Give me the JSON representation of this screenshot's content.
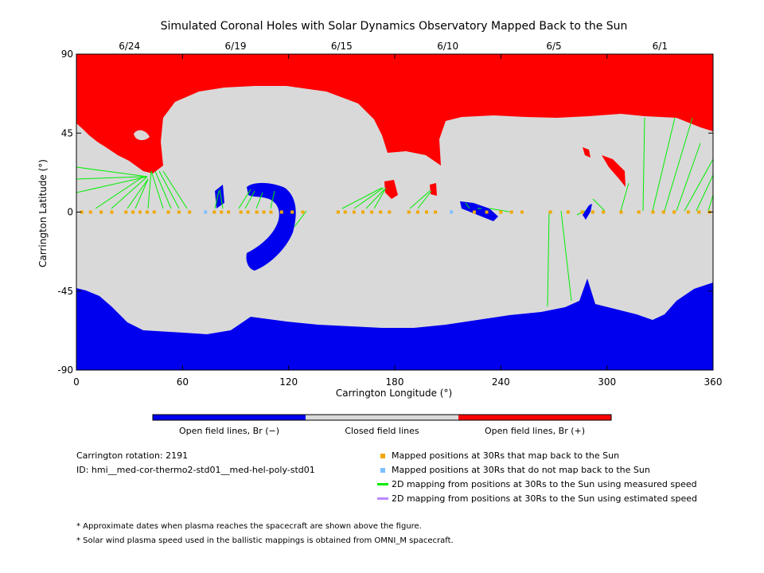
{
  "title": "Simulated Coronal Holes with Solar Dynamics Observatory Mapped Back to the Sun",
  "xlabel": "Carrington Longitude (°)",
  "ylabel": "Carrington Latitude (°)",
  "x_ticks": [
    "0",
    "60",
    "120",
    "180",
    "240",
    "300",
    "360"
  ],
  "y_ticks": [
    "90",
    "45",
    "0",
    "-45",
    "-90"
  ],
  "date_ticks": [
    {
      "label": "6/24",
      "lon": 30
    },
    {
      "label": "6/19",
      "lon": 90
    },
    {
      "label": "6/15",
      "lon": 150
    },
    {
      "label": "6/10",
      "lon": 210
    },
    {
      "label": "6/5",
      "lon": 270
    },
    {
      "label": "6/1",
      "lon": 330
    }
  ],
  "colors": {
    "open_negative": "#0000ee",
    "closed": "#d9d9d9",
    "open_positive": "#ff0000",
    "mapped_back": "#f0a800",
    "not_mapped": "#7fbfff",
    "measured_speed": "#00ee00",
    "estimated_speed": "#bb88ff"
  },
  "colorbar": {
    "labels": [
      "Open field lines, Br (−)",
      "Closed field lines",
      "Open field lines, Br (+)"
    ]
  },
  "info": {
    "rotation": "Carrington rotation: 2191",
    "id": "ID: hmi__med-cor-thermo2-std01__med-hel-poly-std01"
  },
  "legend": [
    {
      "text": "Mapped positions at 30Rs that map back to the Sun",
      "kind": "square",
      "color_key": "mapped_back"
    },
    {
      "text": "Mapped positions at 30Rs that do not map back to the Sun",
      "kind": "square",
      "color_key": "not_mapped"
    },
    {
      "text": "2D mapping from positions at 30Rs to the Sun using measured speed",
      "kind": "line",
      "color_key": "measured_speed"
    },
    {
      "text": "2D mapping from positions at 30Rs to the Sun using estimated speed",
      "kind": "line",
      "color_key": "estimated_speed"
    }
  ],
  "notes": [
    "* Approximate dates when plasma reaches the spacecraft are shown above the figure.",
    "* Solar wind plasma speed used in the ballistic mappings is obtained from OMNI_M spacecraft."
  ],
  "chart_data": {
    "type": "map",
    "xlim": [
      0,
      360
    ],
    "ylim": [
      -90,
      90
    ],
    "mapped_points_lon": [
      3,
      8,
      14,
      20,
      28,
      32,
      36,
      40,
      44,
      52,
      58,
      64,
      78,
      82,
      86,
      93,
      97,
      102,
      106,
      110,
      116,
      122,
      128,
      148,
      152,
      157,
      162,
      167,
      172,
      177,
      188,
      193,
      198,
      203,
      225,
      232,
      240,
      246,
      252,
      268,
      278,
      286,
      292,
      298,
      308,
      318,
      326,
      332,
      338,
      346,
      352,
      358
    ],
    "unmapped_points_lon": [
      73,
      212
    ],
    "coronal_holes": [
      {
        "polarity": "positive",
        "region": "north polar cap"
      },
      {
        "polarity": "negative",
        "region": "south polar cap"
      },
      {
        "polarity": "negative",
        "region": "equatorial hook near lon 110"
      }
    ]
  }
}
